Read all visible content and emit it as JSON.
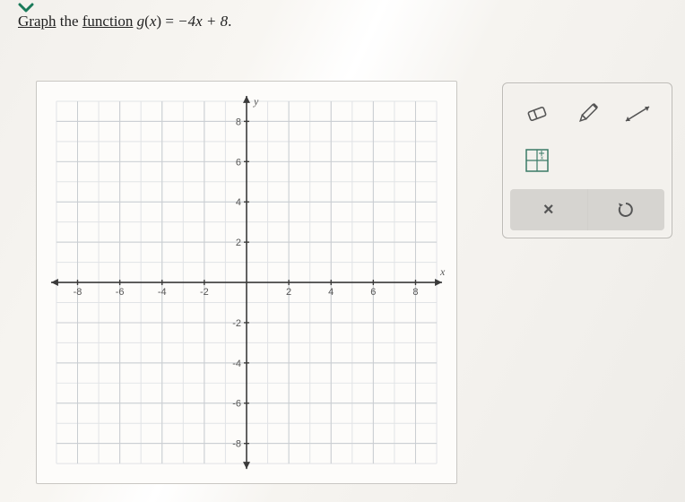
{
  "instruction": {
    "word_graph": "Graph",
    "word_the": " the ",
    "word_function": "function",
    "space": " ",
    "fn_name": "g",
    "fn_arg_open": "(",
    "fn_arg_var": "x",
    "fn_arg_close": ")",
    "eq": " = ",
    "rhs": "−4x + 8",
    "period": "."
  },
  "chart": {
    "type": "cartesian-grid",
    "xlim": [
      -9,
      9
    ],
    "ylim": [
      -9,
      9
    ],
    "tick_step": 2,
    "labeled_x_ticks": [
      -8,
      -6,
      -4,
      -2,
      2,
      4,
      6,
      8
    ],
    "labeled_y_ticks": [
      -8,
      -6,
      -4,
      -2,
      2,
      4,
      6,
      8
    ],
    "axis_label_x": "x",
    "axis_label_y": "y",
    "background_color": "#fdfcfa",
    "major_grid_color": "#c9cdd1",
    "minor_grid_color": "#e1e3e6",
    "axis_color": "#3a3a3a",
    "tick_label_color": "#555555",
    "tick_label_fontsize": 11,
    "grid_stroke_width": 1
  },
  "tools": {
    "eraser": "eraser-icon",
    "pencil": "pencil-icon",
    "line": "line-tool-icon",
    "point_grid": "point-grid-icon",
    "close_label": "×",
    "undo_label": "↺"
  },
  "colors": {
    "panel_bg": "#f3f1ed",
    "panel_border": "#bdbbb6",
    "action_bg": "#d6d4d0",
    "icon_stroke": "#555555",
    "accent_teal": "#1a7a5a"
  }
}
